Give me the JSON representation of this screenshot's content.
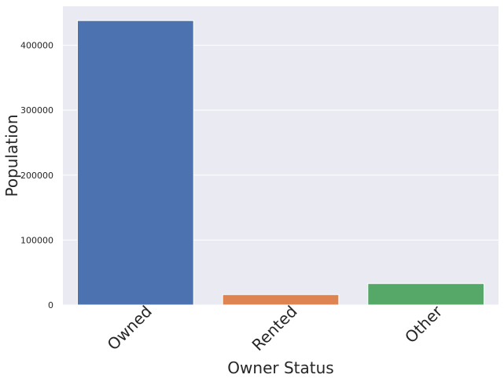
{
  "chart_data": {
    "type": "bar",
    "title": "",
    "xlabel": "Owner Status",
    "ylabel": "Population",
    "categories": [
      "Owned",
      "Rented",
      "Other"
    ],
    "values": [
      438000,
      16000,
      33000
    ],
    "colors": [
      "#4c72b0",
      "#dd8452",
      "#55a868"
    ],
    "ylim": [
      0,
      460000
    ],
    "yticks": [
      0,
      100000,
      200000,
      300000,
      400000
    ],
    "ytick_labels": [
      "0",
      "100000",
      "200000",
      "300000",
      "400000"
    ],
    "grid": true,
    "background": "#eaeaf2",
    "xtick_rotation_deg": -45
  }
}
